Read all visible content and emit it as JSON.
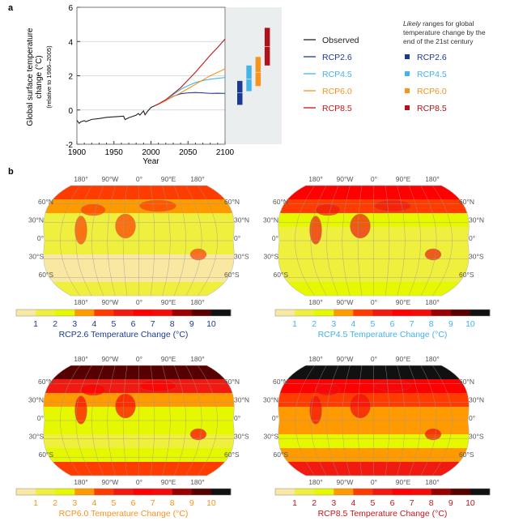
{
  "panel_a_label": "a",
  "panel_b_label": "b",
  "chart_data": [
    {
      "type": "line",
      "xlabel": "Year",
      "ylabel": "Global surface temperature change (°C)",
      "ylabel_sub": "(relative to 1986–2005)",
      "xlim": [
        1900,
        2100
      ],
      "ylim": [
        -2,
        6
      ],
      "xticks": [
        1900,
        1950,
        2000,
        2050,
        2100
      ],
      "yticks": [
        -2,
        0,
        2,
        4,
        6
      ],
      "grid": "horizontal",
      "series": [
        {
          "name": "Observed",
          "color": "#222222",
          "x": [
            1900,
            1903,
            1905,
            1910,
            1912,
            1920,
            1930,
            1940,
            1950,
            1960,
            1963,
            1965,
            1970,
            1975,
            1980,
            1983,
            1985,
            1990,
            1992,
            1995,
            2000,
            2005
          ],
          "y": [
            -0.6,
            -0.78,
            -0.7,
            -0.62,
            -0.68,
            -0.55,
            -0.5,
            -0.43,
            -0.4,
            -0.37,
            -0.36,
            -0.56,
            -0.45,
            -0.38,
            -0.3,
            -0.2,
            -0.3,
            -0.05,
            -0.28,
            -0.1,
            0.15,
            0.25
          ]
        },
        {
          "name": "RCP2.6",
          "color": "#1c3a94",
          "x": [
            2005,
            2010,
            2020,
            2030,
            2040,
            2050,
            2060,
            2070,
            2080,
            2090,
            2100
          ],
          "y": [
            0.25,
            0.35,
            0.55,
            0.8,
            0.95,
            1.0,
            1.02,
            1.0,
            0.97,
            0.98,
            0.97
          ]
        },
        {
          "name": "RCP4.5",
          "color": "#44b3ea",
          "x": [
            2005,
            2010,
            2020,
            2030,
            2040,
            2050,
            2060,
            2070,
            2080,
            2090,
            2100
          ],
          "y": [
            0.25,
            0.35,
            0.6,
            0.9,
            1.2,
            1.42,
            1.6,
            1.72,
            1.8,
            1.85,
            1.9
          ]
        },
        {
          "name": "RCP6.0",
          "color": "#f7931e",
          "x": [
            2005,
            2010,
            2020,
            2030,
            2040,
            2050,
            2060,
            2070,
            2080,
            2090,
            2100
          ],
          "y": [
            0.25,
            0.33,
            0.55,
            0.78,
            1.0,
            1.25,
            1.5,
            1.75,
            2.0,
            2.2,
            2.4
          ]
        },
        {
          "name": "RCP8.5",
          "color": "#c4161c",
          "x": [
            2005,
            2010,
            2020,
            2030,
            2040,
            2050,
            2060,
            2070,
            2080,
            2090,
            2100
          ],
          "y": [
            0.25,
            0.35,
            0.6,
            0.95,
            1.3,
            1.75,
            2.2,
            2.7,
            3.2,
            3.65,
            4.15
          ]
        }
      ],
      "likely_ranges_title_italic": "Likely",
      "likely_ranges_title": " ranges for global temperature change by the end of the 21st century",
      "likely_ranges": [
        {
          "name": "RCP2.6",
          "color": "#1c3a94",
          "low": 0.3,
          "mean": 1.0,
          "high": 1.7
        },
        {
          "name": "RCP4.5",
          "color": "#44b3ea",
          "low": 1.1,
          "mean": 1.8,
          "high": 2.6
        },
        {
          "name": "RCP6.0",
          "color": "#f7931e",
          "low": 1.4,
          "mean": 2.2,
          "high": 3.1
        },
        {
          "name": "RCP8.5",
          "color": "#b0121b",
          "low": 2.6,
          "mean": 3.7,
          "high": 4.8
        }
      ]
    },
    {
      "type": "heatmap",
      "colorbar_ticks": [
        "1",
        "2",
        "3",
        "4",
        "5",
        "6",
        "7",
        "8",
        "9",
        "10"
      ],
      "colorbar_colors": [
        "#f9e8a2",
        "#eff03e",
        "#e6f800",
        "#ff9a00",
        "#ff3c00",
        "#f01a10",
        "#ff0000",
        "#f50a0a",
        "#9a0000",
        "#560000",
        "#111111"
      ],
      "lon_labels": [
        "180°",
        "90°W",
        "0°",
        "90°E",
        "180°"
      ],
      "lat_labels": [
        "60°N",
        "30°N",
        "0°",
        "30°S",
        "60°S"
      ],
      "maps": [
        {
          "title": "RCP2.6 Temperature Change (°C)",
          "color": "#1c3a94",
          "bands": [
            4,
            3,
            1,
            1,
            1,
            0,
            0,
            1
          ]
        },
        {
          "title": "RCP4.5 Temperature Change (°C)",
          "color": "#44b3ea",
          "bands": [
            6,
            4,
            2,
            1,
            1,
            1,
            1,
            2
          ]
        },
        {
          "title": "RCP6.0 Temperature Change (°C)",
          "color": "#f7931e",
          "bands": [
            9,
            5,
            3,
            2,
            2,
            1,
            2,
            4
          ]
        },
        {
          "title": "RCP8.5 Temperature Change (°C)",
          "color": "#c4161c",
          "bands": [
            10,
            6,
            4,
            3,
            3,
            2,
            3,
            5
          ]
        }
      ]
    }
  ]
}
